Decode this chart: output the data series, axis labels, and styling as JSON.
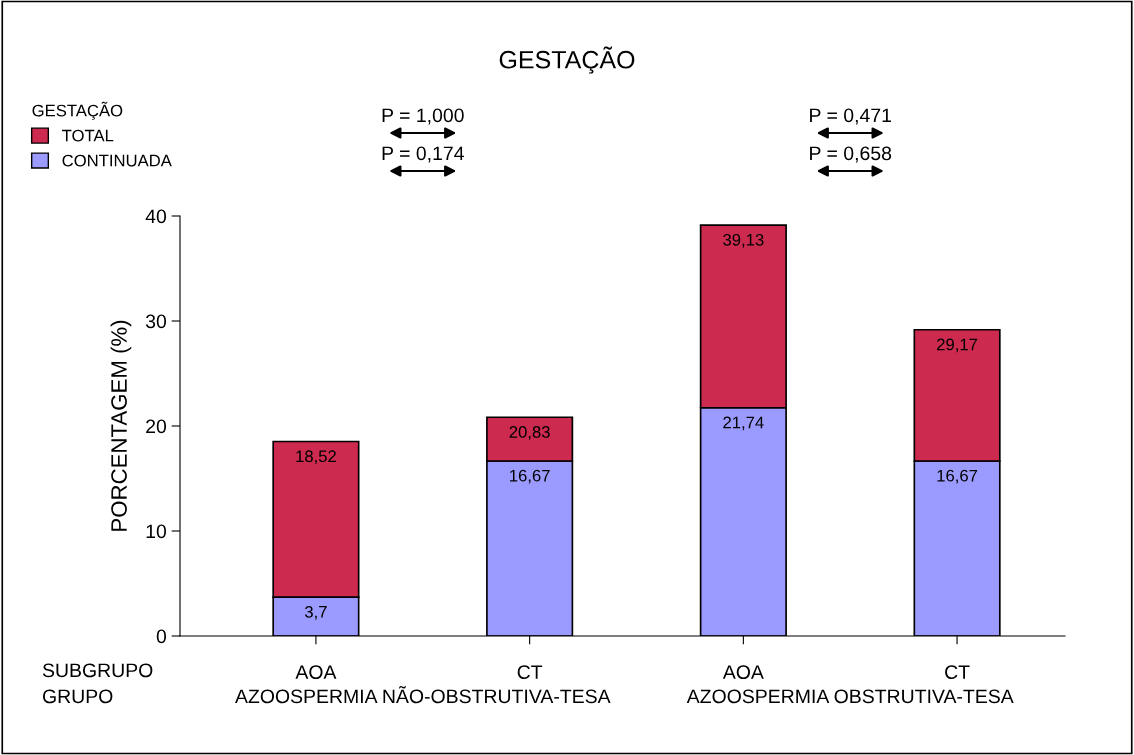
{
  "chart_data": {
    "type": "bar",
    "title": "GESTAÇÃO",
    "ylabel": "PORCENTAGEM (%)",
    "legend_title": "GESTAÇÃO",
    "categories": [
      "AOA",
      "CT",
      "AOA",
      "CT"
    ],
    "stacked": true,
    "series": [
      {
        "name": "CONTINUADA",
        "color": "#9b9bff",
        "values": [
          3.7,
          16.67,
          21.74,
          16.67
        ],
        "value_labels": [
          "3,7",
          "16,67",
          "21,74",
          "16,67"
        ]
      },
      {
        "name": "TOTAL",
        "color": "#cc2a4e",
        "values": [
          14.82,
          4.16,
          17.39,
          12.5
        ]
      }
    ],
    "totals": [
      "18,52",
      "20,83",
      "39,13",
      "29,17"
    ],
    "ylim": [
      0,
      40
    ],
    "yticks": [
      0,
      10,
      20,
      30,
      40
    ],
    "grid": false,
    "legend": "top left",
    "annotations": [
      "P = 1,000",
      "P = 0,174",
      "P = 0,471",
      "P = 0,658",
      "SUBGRUPO",
      "GRUPO",
      "AZOOSPERMIA NÃO-OBSTRUTIVA-TESA",
      "AZOOSPERMIA OBSTRUTIVA-TESA"
    ]
  }
}
